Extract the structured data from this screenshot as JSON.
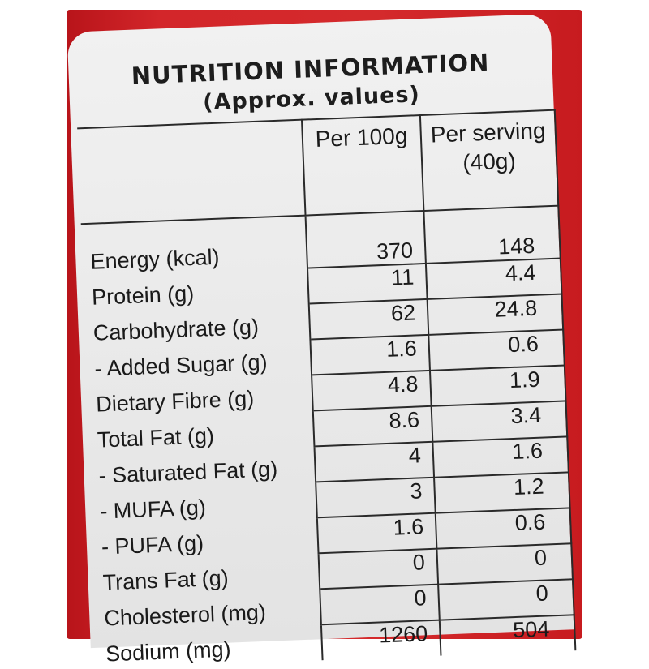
{
  "header": {
    "title": "NUTRITION INFORMATION",
    "subtitle": "(Approx. values)"
  },
  "colors": {
    "pack_red": "#d42a2c",
    "panel_background": "#ececec",
    "text": "#1a1a1a"
  },
  "table": {
    "columns": [
      "Per 100g",
      "Per serving (40g)"
    ],
    "column_per100": "Per 100g",
    "column_serving_line1": "Per serving",
    "column_serving_line2": "(40g)",
    "rows": [
      {
        "label": "Energy (kcal)",
        "per_100g": "370",
        "per_serving": "148"
      },
      {
        "label": "Protein (g)",
        "per_100g": "11",
        "per_serving": "4.4"
      },
      {
        "label": "Carbohydrate (g)",
        "per_100g": "62",
        "per_serving": "24.8"
      },
      {
        "label": "- Added Sugar (g)",
        "per_100g": "1.6",
        "per_serving": "0.6"
      },
      {
        "label": "Dietary Fibre (g)",
        "per_100g": "4.8",
        "per_serving": "1.9"
      },
      {
        "label": "Total Fat (g)",
        "per_100g": "8.6",
        "per_serving": "3.4"
      },
      {
        "label": "- Saturated Fat (g)",
        "per_100g": "4",
        "per_serving": "1.6"
      },
      {
        "label": "- MUFA (g)",
        "per_100g": "3",
        "per_serving": "1.2"
      },
      {
        "label": "- PUFA (g)",
        "per_100g": "1.6",
        "per_serving": "0.6"
      },
      {
        "label": "Trans Fat (g)",
        "per_100g": "0",
        "per_serving": "0"
      },
      {
        "label": "Cholesterol (mg)",
        "per_100g": "0",
        "per_serving": "0"
      },
      {
        "label": "Sodium (mg)",
        "per_100g": "1260",
        "per_serving": "504"
      }
    ]
  }
}
